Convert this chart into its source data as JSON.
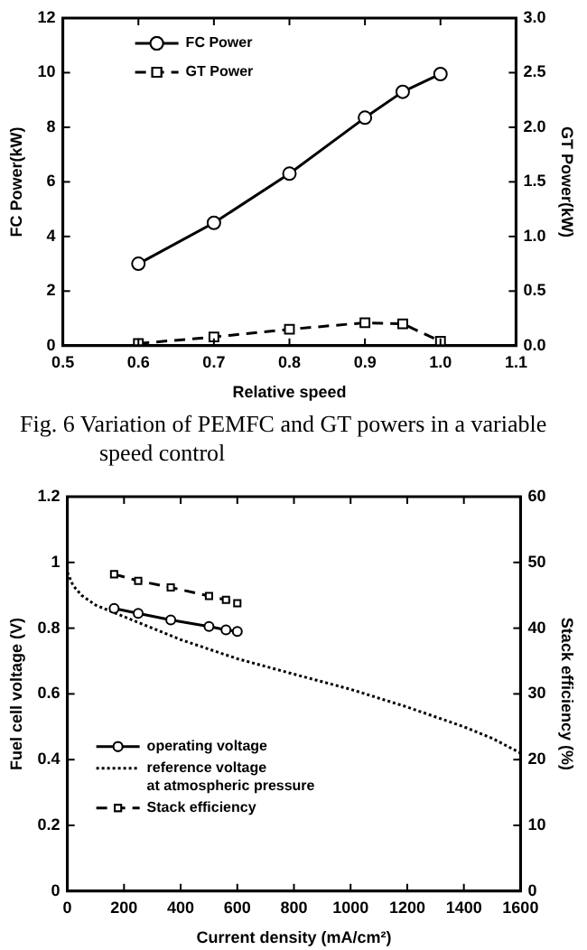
{
  "chart_data": [
    {
      "type": "line",
      "xlabel": "Relative speed",
      "ylabel": "FC Power(kW)",
      "y2label": "GT Power(kW)",
      "annotations": [
        "Fig. 6  Variation of PEMFC and GT powers in a variable speed control"
      ],
      "x": [
        0.6,
        0.7,
        0.8,
        0.9,
        0.95,
        1.0
      ],
      "series": [
        {
          "name": "FC Power",
          "color": "#000000",
          "values": [
            3.0,
            4.5,
            6.3,
            8.35,
            9.3,
            9.95
          ],
          "marker": "circle",
          "line_style": "solid"
        },
        {
          "name": "GT Power",
          "color": "#000000",
          "values": [
            0.02,
            0.08,
            0.15,
            0.21,
            0.2,
            0.04
          ],
          "axis": "y2",
          "marker": "square",
          "line_style": "dashed"
        }
      ],
      "xlim": [
        0.5,
        1.1
      ],
      "xticks": [
        0.5,
        0.6,
        0.7,
        0.8,
        0.9,
        {
          "value": 1,
          "label": "1.0"
        },
        1.1
      ],
      "ylim": [
        0,
        12
      ],
      "yticks": [
        0,
        2,
        4,
        6,
        8,
        10,
        12
      ],
      "y2lim": [
        0,
        3
      ],
      "y2ticks": [
        {
          "value": 0,
          "label": "0.0"
        },
        0.5,
        {
          "value": 1,
          "label": "1.0"
        },
        1.5,
        {
          "value": 2,
          "label": "2.0"
        },
        2.5,
        {
          "value": 3,
          "label": "3.0"
        }
      ],
      "grid": false,
      "legend": "top left"
    },
    {
      "type": "line",
      "xlabel": "Current density (mA/cm²)",
      "ylabel": "Fuel cell voltage (V)",
      "y2label": "Stack efficiency (%)",
      "x": [
        165,
        250,
        365,
        500,
        560,
        600
      ],
      "series": [
        {
          "name": "operating voltage",
          "color": "#000000",
          "values": [
            0.86,
            0.845,
            0.825,
            0.805,
            0.795,
            0.79
          ],
          "marker": "circle",
          "line_style": "solid"
        },
        {
          "name": "reference voltage\nat atmospheric pressure",
          "color": "#000000",
          "x": [
            0,
            20,
            50,
            100,
            200,
            400,
            600,
            800,
            1000,
            1200,
            1400,
            1500,
            1600
          ],
          "values": [
            0.97,
            0.93,
            0.9,
            0.87,
            0.835,
            0.765,
            0.707,
            0.66,
            0.614,
            0.56,
            0.5,
            0.465,
            0.42
          ],
          "marker": "none",
          "line_style": "dotted"
        },
        {
          "name": "Stack efficiency",
          "color": "#000000",
          "values": [
            48.2,
            47.2,
            46.2,
            44.9,
            44.3,
            43.8
          ],
          "axis": "y2",
          "marker": "square",
          "line_style": "dashed"
        }
      ],
      "xlim": [
        0,
        1600
      ],
      "xticks": [
        0,
        200,
        400,
        600,
        800,
        1000,
        1200,
        1400,
        1600
      ],
      "ylim": [
        0,
        1.2
      ],
      "yticks": [
        0,
        0.2,
        0.4,
        0.6,
        0.8,
        1,
        1.2
      ],
      "y2lim": [
        0,
        60
      ],
      "y2ticks": [
        0,
        10,
        20,
        30,
        40,
        50,
        60
      ],
      "grid": false,
      "legend": "bottom left"
    }
  ]
}
